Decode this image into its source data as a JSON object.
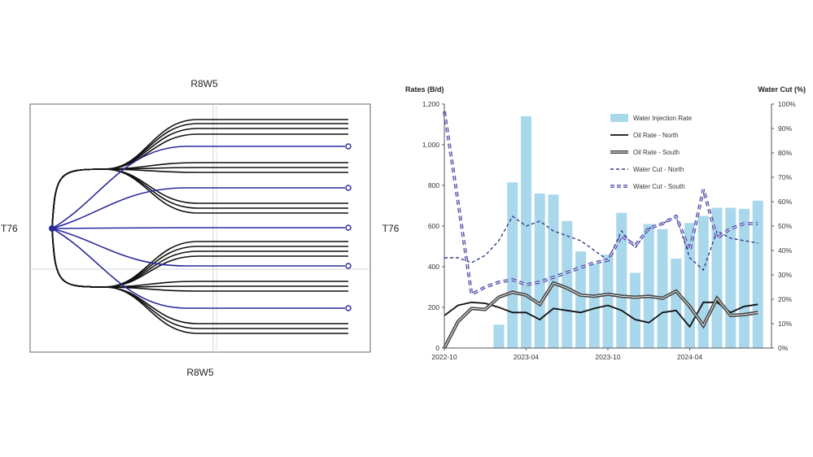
{
  "well_map": {
    "top_label": "R8W5",
    "bottom_label": "R8W5",
    "left_label": "T76",
    "right_label": "T76",
    "colors": {
      "producer": "#111111",
      "injector": "#2a2a9a",
      "border": "#666666",
      "grid": "#cccccc"
    },
    "producer_count": 20,
    "injector_count": 5
  },
  "chart_data": {
    "type": "bar+line",
    "y_left_title": "Rates (B/d)",
    "y_right_title": "Water Cut (%)",
    "y_left_range": [
      0,
      1200
    ],
    "y_left_ticks": [
      "0",
      "200",
      "400",
      "600",
      "800",
      "1,000",
      "1,200"
    ],
    "y_left_tick_values": [
      0,
      200,
      400,
      600,
      800,
      1000,
      1200
    ],
    "y_right_range": [
      0,
      100
    ],
    "y_right_ticks": [
      "0%",
      "10%",
      "20%",
      "30%",
      "40%",
      "50%",
      "60%",
      "70%",
      "80%",
      "90%",
      "100%"
    ],
    "y_right_tick_values": [
      0,
      10,
      20,
      30,
      40,
      50,
      60,
      70,
      80,
      90,
      100
    ],
    "x_ticks": [
      {
        "label": "2022-10",
        "x": "2022-10"
      },
      {
        "label": "2023-04",
        "x": "2023-04"
      },
      {
        "label": "2023-10",
        "x": "2023-10"
      },
      {
        "label": "2024-04",
        "x": "2024-04"
      }
    ],
    "x_range": [
      "2022-10",
      "2024-10"
    ],
    "legend_position": "top-right",
    "bars": {
      "name": "Water Injection Rate",
      "color": "#a9d8ec",
      "x": [
        "2023-02",
        "2023-03",
        "2023-04",
        "2023-05",
        "2023-06",
        "2023-07",
        "2023-08",
        "2023-09",
        "2023-10",
        "2023-11",
        "2023-12",
        "2024-01",
        "2024-02",
        "2024-03",
        "2024-04",
        "2024-05",
        "2024-06",
        "2024-07",
        "2024-08",
        "2024-09"
      ],
      "values": [
        115,
        815,
        1140,
        760,
        755,
        625,
        475,
        415,
        460,
        665,
        370,
        610,
        585,
        440,
        615,
        650,
        690,
        690,
        685,
        725
      ]
    },
    "lines": [
      {
        "name": "Oil Rate - North",
        "axis": "left",
        "color": "#111111",
        "style": "solid",
        "width": 1.8,
        "x": [
          "2022-10",
          "2022-11",
          "2022-12",
          "2023-01",
          "2023-02",
          "2023-03",
          "2023-04",
          "2023-05",
          "2023-06",
          "2023-07",
          "2023-08",
          "2023-09",
          "2023-10",
          "2023-11",
          "2023-12",
          "2024-01",
          "2024-02",
          "2024-03",
          "2024-04",
          "2024-05",
          "2024-06",
          "2024-07",
          "2024-08",
          "2024-09"
        ],
        "values": [
          160,
          210,
          225,
          220,
          200,
          175,
          175,
          140,
          195,
          185,
          175,
          195,
          210,
          185,
          140,
          125,
          175,
          185,
          105,
          225,
          225,
          175,
          205,
          215
        ]
      },
      {
        "name": "Oil Rate - South",
        "axis": "left",
        "color": "#444444",
        "style": "double",
        "width": 2.5,
        "x": [
          "2022-10",
          "2022-11",
          "2022-12",
          "2023-01",
          "2023-02",
          "2023-03",
          "2023-04",
          "2023-05",
          "2023-06",
          "2023-07",
          "2023-08",
          "2023-09",
          "2023-10",
          "2023-11",
          "2023-12",
          "2024-01",
          "2024-02",
          "2024-03",
          "2024-04",
          "2024-05",
          "2024-06",
          "2024-07",
          "2024-08",
          "2024-09"
        ],
        "values": [
          0,
          130,
          195,
          190,
          250,
          275,
          260,
          215,
          320,
          295,
          260,
          255,
          265,
          255,
          250,
          255,
          245,
          280,
          205,
          110,
          245,
          160,
          165,
          175
        ]
      },
      {
        "name": "Water Cut - North",
        "axis": "right",
        "color": "#3a3a8c",
        "style": "dashed",
        "width": 1.4,
        "x": [
          "2022-10",
          "2022-11",
          "2022-12",
          "2023-01",
          "2023-02",
          "2023-03",
          "2023-04",
          "2023-05",
          "2023-06",
          "2023-07",
          "2023-08",
          "2023-09",
          "2023-10",
          "2023-11",
          "2023-12",
          "2024-01",
          "2024-02",
          "2024-03",
          "2024-04",
          "2024-05",
          "2024-06",
          "2024-07",
          "2024-08",
          "2024-09"
        ],
        "values": [
          37,
          37,
          35,
          38,
          44,
          54,
          50,
          52,
          48,
          46,
          44,
          40,
          36,
          48,
          41,
          49,
          51,
          54,
          37,
          32,
          48,
          45,
          44,
          43
        ]
      },
      {
        "name": "Water Cut - South",
        "axis": "right",
        "color": "#5555b0",
        "style": "dashed-double",
        "width": 2.2,
        "x": [
          "2022-10",
          "2022-11",
          "2022-12",
          "2023-01",
          "2023-02",
          "2023-03",
          "2023-04",
          "2023-05",
          "2023-06",
          "2023-07",
          "2023-08",
          "2023-09",
          "2023-10",
          "2023-11",
          "2023-12",
          "2024-01",
          "2024-02",
          "2024-03",
          "2024-04",
          "2024-05",
          "2024-06",
          "2024-07",
          "2024-08",
          "2024-09"
        ],
        "values": [
          97,
          60,
          22,
          25,
          27,
          28,
          26,
          27,
          29,
          31,
          33,
          35,
          36,
          46,
          42,
          49,
          51,
          54,
          40,
          65,
          45,
          49,
          51,
          51
        ]
      }
    ]
  }
}
